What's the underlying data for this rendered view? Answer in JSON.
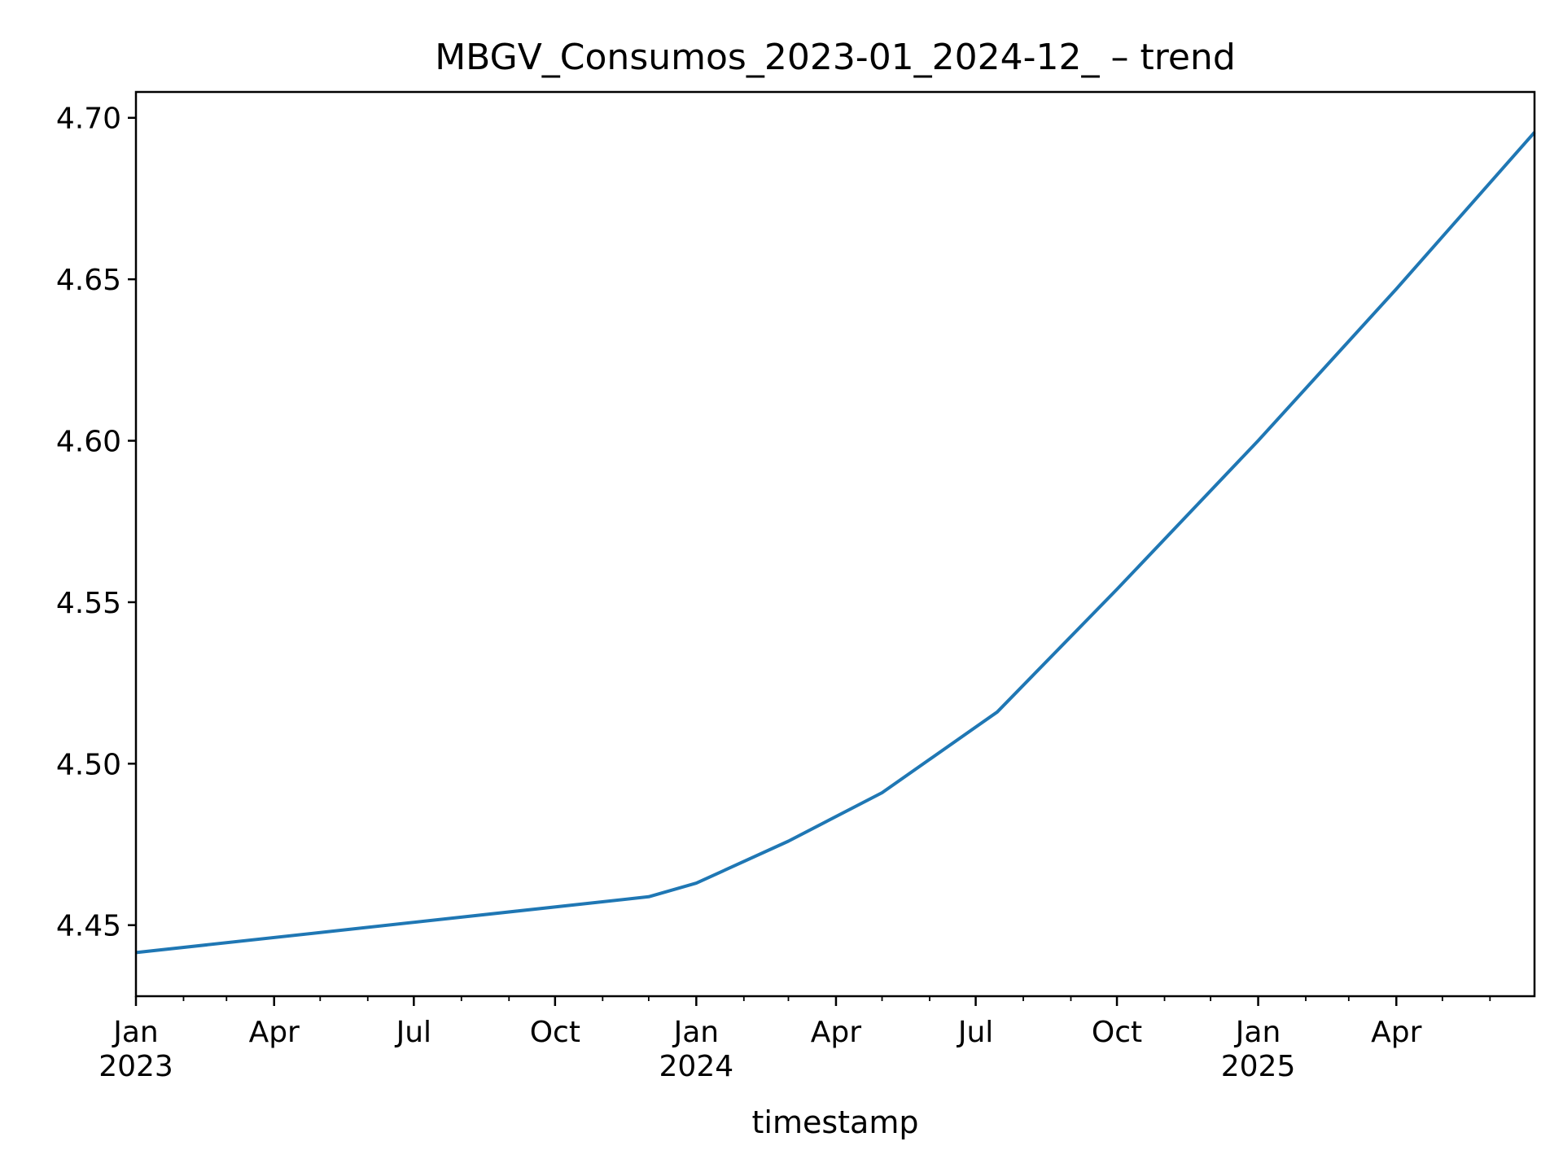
{
  "chart_data": {
    "type": "line",
    "title": "MBGV_Consumos_2023-01_2024-12_ – trend",
    "xlabel": "timestamp",
    "ylabel": "",
    "x_axis": "date",
    "xlim": [
      "2023-01-01",
      "2025-06-30"
    ],
    "ylim": [
      4.428,
      4.708
    ],
    "grid": false,
    "y_ticks": [
      {
        "value": 4.45,
        "label": "4.45"
      },
      {
        "value": 4.5,
        "label": "4.50"
      },
      {
        "value": 4.55,
        "label": "4.55"
      },
      {
        "value": 4.6,
        "label": "4.60"
      },
      {
        "value": 4.65,
        "label": "4.65"
      },
      {
        "value": 4.7,
        "label": "4.70"
      }
    ],
    "x_major_ticks": [
      {
        "date": "2023-01-01",
        "label": "Jan",
        "year": "2023"
      },
      {
        "date": "2023-04-01",
        "label": "Apr",
        "year": ""
      },
      {
        "date": "2023-07-01",
        "label": "Jul",
        "year": ""
      },
      {
        "date": "2023-10-01",
        "label": "Oct",
        "year": ""
      },
      {
        "date": "2024-01-01",
        "label": "Jan",
        "year": "2024"
      },
      {
        "date": "2024-04-01",
        "label": "Apr",
        "year": ""
      },
      {
        "date": "2024-07-01",
        "label": "Jul",
        "year": ""
      },
      {
        "date": "2024-10-01",
        "label": "Oct",
        "year": ""
      },
      {
        "date": "2025-01-01",
        "label": "Jan",
        "year": "2025"
      },
      {
        "date": "2025-04-01",
        "label": "Apr",
        "year": ""
      }
    ],
    "x_minor_ticks": [
      "2023-02-01",
      "2023-03-01",
      "2023-05-01",
      "2023-06-01",
      "2023-08-01",
      "2023-09-01",
      "2023-11-01",
      "2023-12-01",
      "2024-02-01",
      "2024-03-01",
      "2024-05-01",
      "2024-06-01",
      "2024-08-01",
      "2024-09-01",
      "2024-11-01",
      "2024-12-01",
      "2025-02-01",
      "2025-03-01",
      "2025-05-01",
      "2025-06-01",
      "2025-07-01"
    ],
    "series": [
      {
        "color": "#1f77b4",
        "points": [
          {
            "x": "2023-01-01",
            "y": 4.4415
          },
          {
            "x": "2023-12-01",
            "y": 4.4588
          },
          {
            "x": "2024-01-01",
            "y": 4.463
          },
          {
            "x": "2024-03-01",
            "y": 4.476
          },
          {
            "x": "2024-05-01",
            "y": 4.491
          },
          {
            "x": "2024-07-15",
            "y": 4.516
          },
          {
            "x": "2024-10-01",
            "y": 4.554
          },
          {
            "x": "2025-01-01",
            "y": 4.6
          },
          {
            "x": "2025-04-01",
            "y": 4.647
          },
          {
            "x": "2025-06-30",
            "y": 4.6955
          }
        ]
      }
    ]
  }
}
